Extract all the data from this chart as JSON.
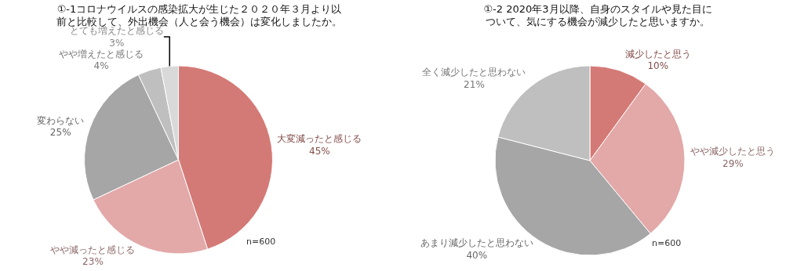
{
  "chart_data": [
    {
      "type": "pie",
      "title": "①-1コロナウイルスの感染拡大が生じた２０２０年３月より以前と比較して、外出機会（人と会う機会）は変化しましたか。",
      "categories": [
        "大変減ったと感じる",
        "やや減ったと感じる",
        "変わらない",
        "やや増えたと感じる",
        "とても増えたと感じる"
      ],
      "values": [
        45,
        23,
        25,
        4,
        3
      ],
      "value_labels": [
        "45%",
        "23%",
        "25%",
        "4%",
        "3%"
      ],
      "colors": [
        "#d47a76",
        "#e3a8a8",
        "#a6a6a6",
        "#bfbfbf",
        "#d9d9d9"
      ],
      "legend": false,
      "annotations": [
        "n=600"
      ]
    },
    {
      "type": "pie",
      "title": "①-2 2020年3月以降、自身のスタイルや見た目について、気にする機会が減少したと思いますか。",
      "categories": [
        "減少したと思う",
        "やや減少したと思う",
        "あまり減少したと思わない",
        "全く減少したと思わない"
      ],
      "values": [
        10,
        29,
        40,
        21
      ],
      "value_labels": [
        "10%",
        "29%",
        "40%",
        "21%"
      ],
      "colors": [
        "#d47a76",
        "#e3a8a8",
        "#a6a6a6",
        "#bfbfbf"
      ],
      "legend": false,
      "annotations": [
        "n=600"
      ]
    }
  ]
}
